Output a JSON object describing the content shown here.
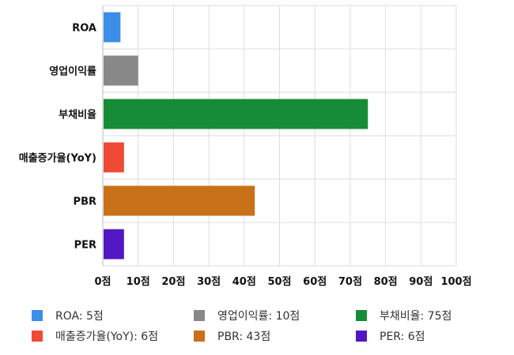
{
  "chart_data": {
    "type": "bar",
    "orientation": "horizontal",
    "categories": [
      "ROA",
      "영업이익률",
      "부채비율",
      "매출증가율(YoY)",
      "PBR",
      "PER"
    ],
    "values": [
      5,
      10,
      75,
      6,
      43,
      6
    ],
    "colors": [
      "#3c8ee8",
      "#888888",
      "#178c37",
      "#ef4a36",
      "#c97119",
      "#5217c4"
    ],
    "xlim": [
      0,
      100
    ],
    "xticks": [
      "0점",
      "10점",
      "20점",
      "30점",
      "40점",
      "50점",
      "60점",
      "70점",
      "80점",
      "90점",
      "100점"
    ],
    "grid": true,
    "legend_position": "bottom",
    "legend": [
      "ROA: 5점",
      "영업이익률: 10점",
      "부채비율: 75점",
      "매출증가율(YoY): 6점",
      "PBR: 43점",
      "PER: 6점"
    ]
  }
}
